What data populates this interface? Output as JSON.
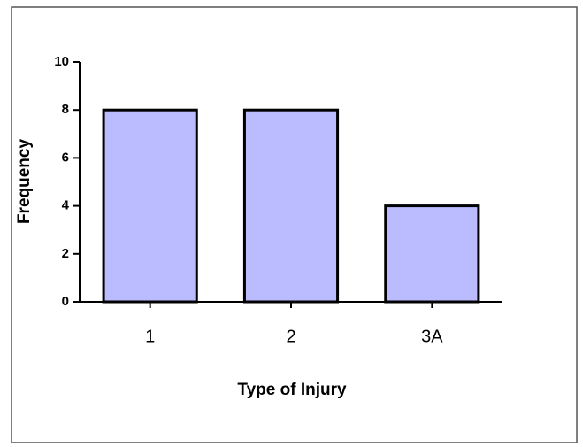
{
  "chart_data": {
    "type": "bar",
    "x_label": "Type of Injury",
    "y_label": "Frequency",
    "categories": [
      "1",
      "2",
      "3A"
    ],
    "values": [
      8,
      8,
      4
    ],
    "color": "#bbbbff",
    "ylim": [
      0,
      10
    ],
    "yticks": [
      0,
      2,
      4,
      6,
      8,
      10
    ]
  }
}
